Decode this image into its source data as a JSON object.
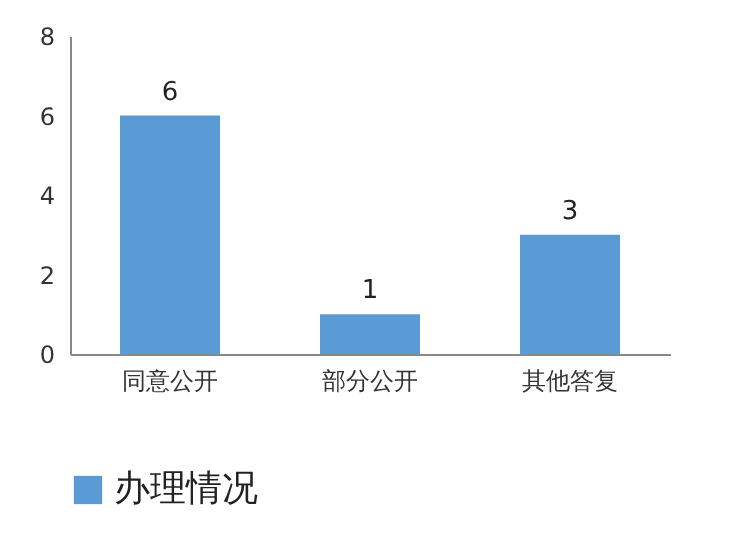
{
  "chart_data": {
    "type": "bar",
    "categories": [
      "同意公开",
      "部分公开",
      "其他答复"
    ],
    "series": [
      {
        "name": "办理情况",
        "color": "#5b9bd5",
        "values": [
          6,
          1,
          3
        ]
      }
    ],
    "ylim": [
      0,
      8
    ],
    "yticks": [
      0,
      2,
      4,
      6,
      8
    ],
    "grid": false,
    "legend": "bottom",
    "data_labels": true
  }
}
